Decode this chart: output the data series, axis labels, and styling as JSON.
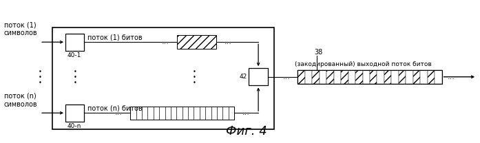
{
  "fig_width": 6.97,
  "fig_height": 2.08,
  "dpi": 100,
  "bg_color": "#ffffff",
  "caption": "Фиг. 4",
  "label_38": "38",
  "label_42": "42",
  "label_401": "40-1",
  "label_40n": "40-n",
  "text_stream1_sym": "поток (1)\nсимволов",
  "text_streamn_sym": "поток (n)\nсимволов",
  "text_stream1_bits": "поток (1) битов",
  "text_streamn_bits": "поток (n) битов",
  "text_output": "(закодированный) выходной поток битов",
  "line_color": "#000000",
  "font_size": 7.0,
  "font_size_caption": 13
}
